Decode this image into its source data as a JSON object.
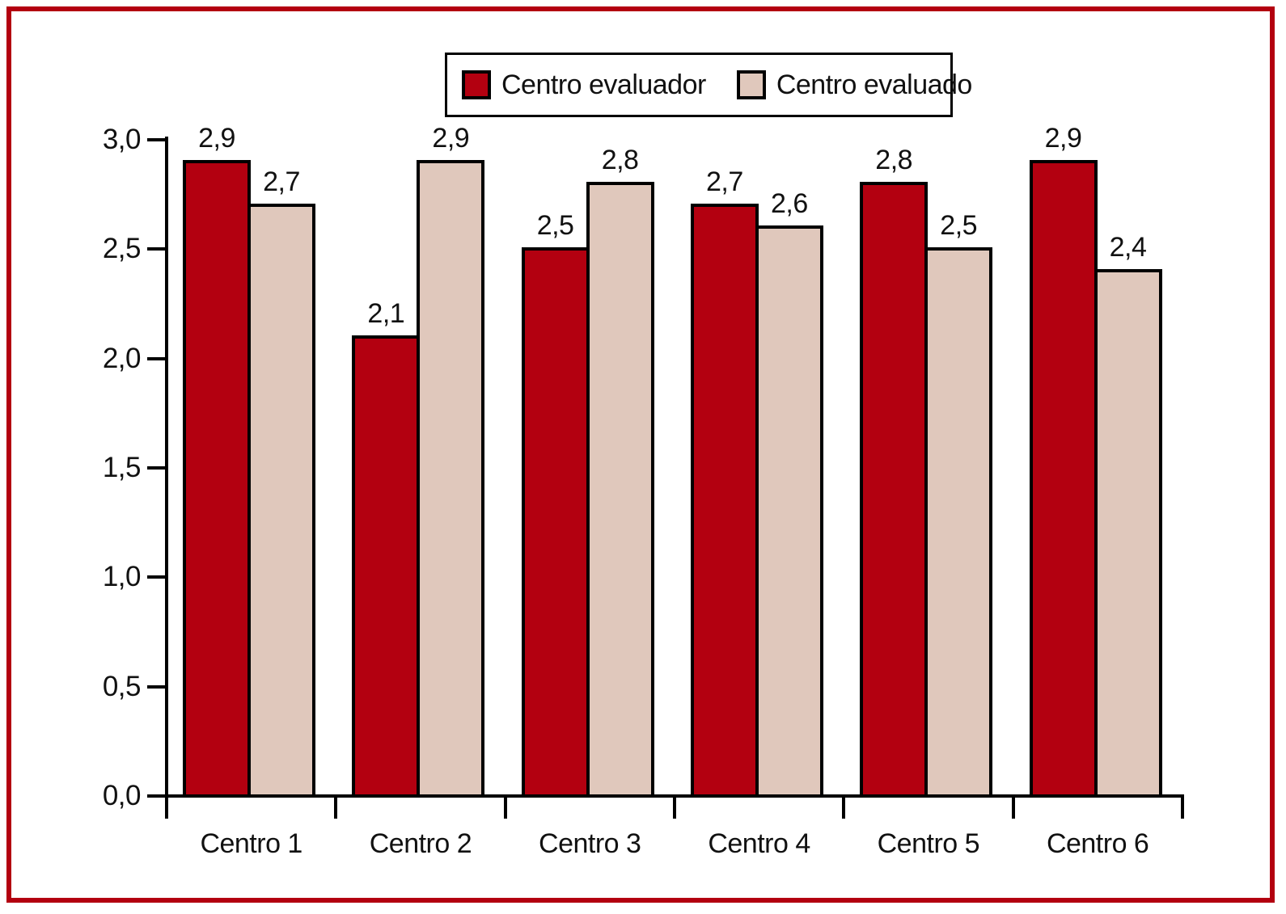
{
  "figure": {
    "frame_color": "#B30010",
    "background_color": "#FFFFFF",
    "axis_color": "#000000",
    "text_color": "#111111"
  },
  "legend": {
    "border_color": "#000000",
    "items": [
      {
        "label": "Centro evaluador",
        "color": "#B30010"
      },
      {
        "label": "Centro evaluado",
        "color": "#E0C8BC"
      }
    ]
  },
  "chart_data": {
    "type": "bar",
    "title": "",
    "xlabel": "",
    "ylabel": "",
    "categories": [
      "Centro 1",
      "Centro 2",
      "Centro 3",
      "Centro 4",
      "Centro 5",
      "Centro 6"
    ],
    "series": [
      {
        "name": "Centro evaluador",
        "color": "#B30010",
        "values": [
          2.9,
          2.1,
          2.5,
          2.7,
          2.8,
          2.9
        ]
      },
      {
        "name": "Centro evaluado",
        "color": "#E0C8BC",
        "values": [
          2.7,
          2.9,
          2.8,
          2.6,
          2.5,
          2.4
        ]
      }
    ],
    "value_labels": [
      [
        "2,9",
        "2,1",
        "2,5",
        "2,7",
        "2,8",
        "2,9"
      ],
      [
        "2,7",
        "2,9",
        "2,8",
        "2,6",
        "2,5",
        "2,4"
      ]
    ],
    "y_ticks": [
      "0,0",
      "0,5",
      "1,0",
      "1,5",
      "2,0",
      "2,5",
      "3,0"
    ],
    "y_tick_step": 0.5,
    "ylim": [
      0,
      3.0
    ],
    "decimal_separator": ",",
    "grid": false,
    "legend_position": "top-center"
  }
}
